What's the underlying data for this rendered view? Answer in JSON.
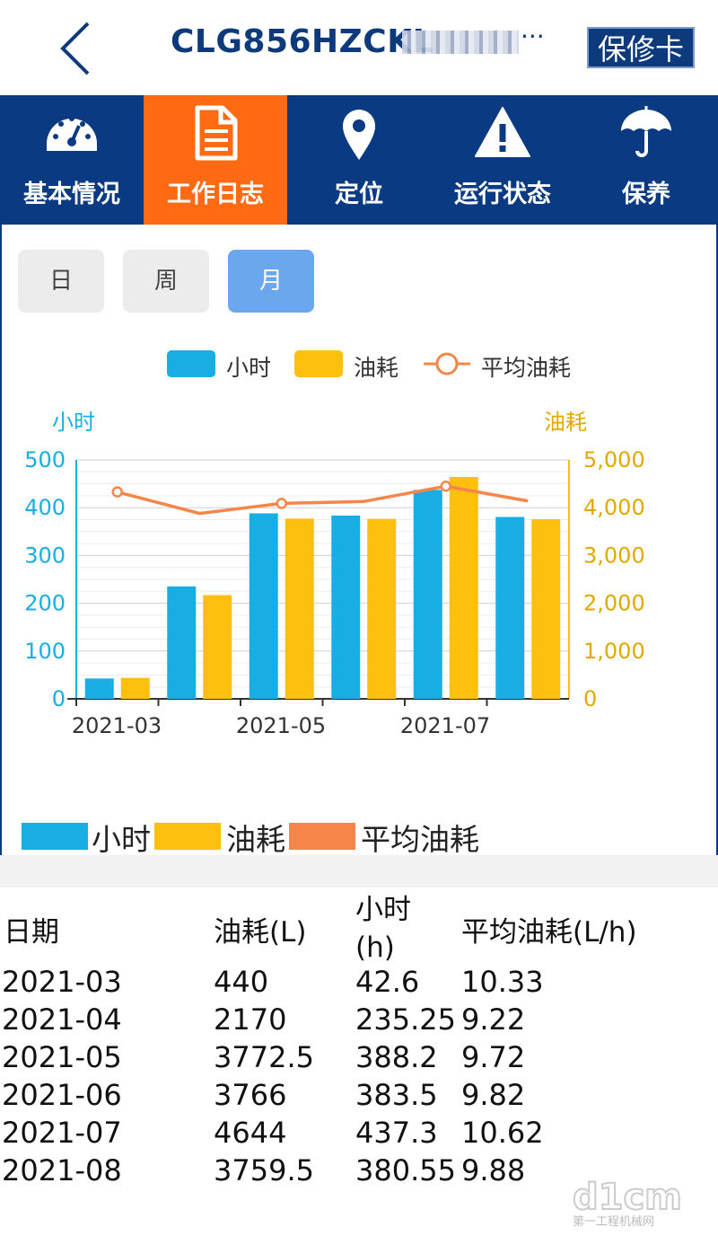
{
  "header": {
    "title": "CLG856HZCKL",
    "title_suffix": "···",
    "warranty_label": "保修卡"
  },
  "tabs": [
    {
      "label": "基本情况",
      "icon": "dashboard-gauge-icon"
    },
    {
      "label": "工作日志",
      "icon": "document-icon",
      "active": true
    },
    {
      "label": "定位",
      "icon": "location-pin-icon"
    },
    {
      "label": "运行状态",
      "icon": "warning-triangle-icon"
    },
    {
      "label": "保养",
      "icon": "umbrella-icon"
    }
  ],
  "period_buttons": [
    {
      "label": "日"
    },
    {
      "label": "周"
    },
    {
      "label": "月",
      "selected": true
    }
  ],
  "colors": {
    "primary": "#0a3b82",
    "active_tab": "#ff6a13",
    "hours": "#18aee3",
    "fuel": "#fdc00f",
    "avg": "#f5864a"
  },
  "chart_legend": {
    "hours": "小时",
    "fuel": "油耗",
    "avg": "平均油耗"
  },
  "chart_data": {
    "type": "bar",
    "categories": [
      "2021-03",
      "2021-04",
      "2021-05",
      "2021-06",
      "2021-07",
      "2021-08"
    ],
    "x_tick_labels": [
      "2021-03",
      "2021-05",
      "2021-07"
    ],
    "series": [
      {
        "name": "小时",
        "axis": "left",
        "type": "bar",
        "values": [
          42.6,
          235.25,
          388.2,
          383.5,
          437.3,
          380.55
        ]
      },
      {
        "name": "油耗",
        "axis": "right",
        "type": "bar",
        "values": [
          440,
          2170,
          3772.5,
          3766,
          4644,
          3759.5
        ]
      },
      {
        "name": "平均油耗",
        "axis": "right",
        "type": "line",
        "values": [
          4330,
          3880,
          4090,
          4130,
          4450,
          4140
        ]
      }
    ],
    "ylabel_left": "小时",
    "ylabel_right": "油耗",
    "ylim_left": [
      0,
      500
    ],
    "ylim_right": [
      0,
      5000
    ],
    "yticks_left": [
      "0",
      "100",
      "200",
      "300",
      "400",
      "500"
    ],
    "yticks_right": [
      "0",
      "1,000",
      "2,000",
      "3,000",
      "4,000",
      "5,000"
    ],
    "legend_position": "top"
  },
  "bottom_legend": {
    "hours": "小时",
    "fuel": "油耗",
    "avg": "平均油耗"
  },
  "table": {
    "headers": [
      "日期",
      "油耗(L)",
      "小时(h)",
      "平均油耗(L/h)"
    ],
    "rows": [
      [
        "2021-03",
        "440",
        "42.6",
        "10.33"
      ],
      [
        "2021-04",
        "2170",
        "235.25",
        "9.22"
      ],
      [
        "2021-05",
        "3772.5",
        "388.2",
        "9.72"
      ],
      [
        "2021-06",
        "3766",
        "383.5",
        "9.82"
      ],
      [
        "2021-07",
        "4644",
        "437.3",
        "10.62"
      ],
      [
        "2021-08",
        "3759.5",
        "380.55",
        "9.88"
      ]
    ]
  }
}
